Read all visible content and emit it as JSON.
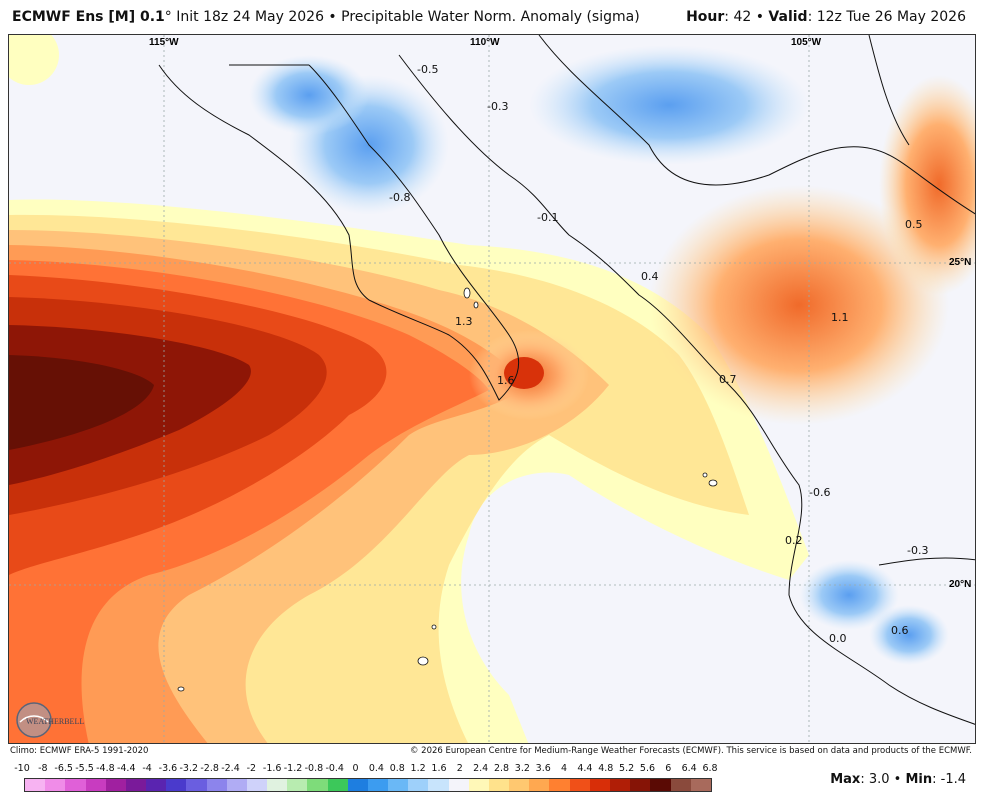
{
  "header": {
    "model": "ECMWF Ens [M] 0.1",
    "degree": "°",
    "init": " Init 18z 24 May 2026 • Precipitable Water Norm. Anomaly (sigma)",
    "hour_label": "Hour",
    "hour_value": ": 42 • ",
    "valid_label": "Valid",
    "valid_value": ": 12z Tue 26 May 2026"
  },
  "map": {
    "lon_labels": [
      "115°W",
      "110°W",
      "105°W"
    ],
    "lat_labels": [
      "25°N",
      "20°N"
    ],
    "contour_labels": [
      "-0.5",
      "-0.3",
      "-0.8",
      "-0.1",
      "0.4",
      "1.3",
      "1.6",
      "0.7",
      "1.1",
      "0.5",
      "-0.6",
      "0.2",
      "-0.3",
      "0.0",
      "0.6"
    ],
    "logo_text": "WEATHERBELL"
  },
  "footer": {
    "climo": "Climo: ECMWF ERA-5 1991-2020",
    "copyright": "© 2026 European Centre for Medium-Range Weather Forecasts (ECMWF). This service is based on data and products of the ECMWF."
  },
  "legend": {
    "ticks": [
      "-10",
      "-8",
      "-6.5",
      "-5.5",
      "-4.8",
      "-4.4",
      "-4",
      "-3.6",
      "-3.2",
      "-2.8",
      "-2.4",
      "-2",
      "-1.6",
      "-1.2",
      "-0.8",
      "-0.4",
      "0",
      "0.4",
      "0.8",
      "1.2",
      "1.6",
      "2",
      "2.4",
      "2.8",
      "3.2",
      "3.6",
      "4",
      "4.4",
      "4.8",
      "5.2",
      "5.6",
      "6",
      "6.4",
      "6.8"
    ],
    "colors": [
      "#f7b3f2",
      "#f08ce8",
      "#e060d8",
      "#c83cc0",
      "#a020a0",
      "#7a1a9a",
      "#5a24b0",
      "#4a3acc",
      "#6a5ee0",
      "#8c84ec",
      "#b0acf4",
      "#cfd2fa",
      "#e0f2e0",
      "#b8ecb0",
      "#7edc7a",
      "#3cc85a",
      "#1e7ee0",
      "#3c9cf0",
      "#6ab8f6",
      "#9ed0fa",
      "#c8e4fc",
      "#f4f4fa",
      "#fff8b8",
      "#ffe28c",
      "#ffc870",
      "#ffa850",
      "#ff8030",
      "#f05018",
      "#d82e08",
      "#b01e06",
      "#861406",
      "#5a0a04",
      "#8a4a3c",
      "#a86a5c"
    ],
    "max_label": "Max",
    "max_value": ": 3.0 • ",
    "min_label": "Min",
    "min_value": ": -1.4"
  }
}
